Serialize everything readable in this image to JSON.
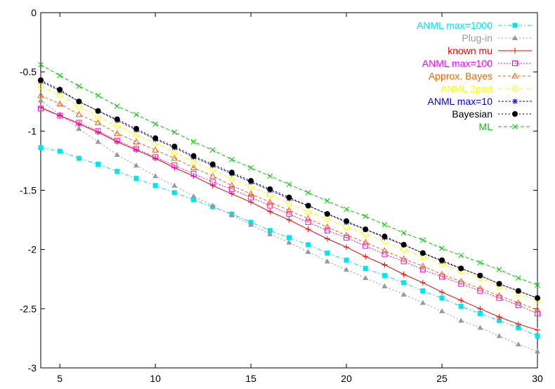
{
  "chart_data": {
    "type": "line",
    "title": "",
    "xlabel": "",
    "ylabel": "",
    "xlim": [
      4,
      30
    ],
    "ylim": [
      -3,
      0
    ],
    "grid": false,
    "legend_position": "top-right",
    "x_ticks": [
      "5",
      "10",
      "15",
      "20",
      "25",
      "30"
    ],
    "y_ticks": [
      "0",
      "-0.5",
      "-1",
      "-1.5",
      "-2",
      "-2.5",
      "-3"
    ],
    "x_tick_values": [
      5,
      10,
      15,
      20,
      25,
      30
    ],
    "y_tick_values": [
      0,
      -0.5,
      -1,
      -1.5,
      -2,
      -2.5,
      -3
    ],
    "x": [
      4,
      5,
      6,
      7,
      8,
      9,
      10,
      11,
      12,
      13,
      14,
      15,
      16,
      17,
      18,
      19,
      20,
      21,
      22,
      23,
      24,
      25,
      26,
      27,
      28,
      29,
      30
    ],
    "series": [
      {
        "name": "ANML max=1000",
        "color": "#00e5ee",
        "dash": "6,3,2,3",
        "marker": "filled-square",
        "values": [
          -1.14,
          -1.17,
          -1.23,
          -1.28,
          -1.34,
          -1.4,
          -1.46,
          -1.52,
          -1.58,
          -1.64,
          -1.7,
          -1.77,
          -1.84,
          -1.9,
          -1.96,
          -2.03,
          -2.09,
          -2.16,
          -2.22,
          -2.28,
          -2.35,
          -2.41,
          -2.48,
          -2.54,
          -2.6,
          -2.66,
          -2.73
        ]
      },
      {
        "name": "Plug-in",
        "color": "#999999",
        "dash": "2,3",
        "marker": "filled-triangle",
        "values": [
          -0.74,
          -0.86,
          -0.98,
          -1.09,
          -1.2,
          -1.29,
          -1.38,
          -1.46,
          -1.55,
          -1.63,
          -1.71,
          -1.79,
          -1.87,
          -1.94,
          -2.02,
          -2.1,
          -2.17,
          -2.24,
          -2.31,
          -2.38,
          -2.45,
          -2.52,
          -2.6,
          -2.66,
          -2.73,
          -2.8,
          -2.86
        ]
      },
      {
        "name": "known mu",
        "color": "#ff0000",
        "dash": "",
        "marker": "plus",
        "values": [
          -0.8,
          -0.87,
          -0.94,
          -1.01,
          -1.09,
          -1.16,
          -1.23,
          -1.31,
          -1.38,
          -1.46,
          -1.53,
          -1.6,
          -1.68,
          -1.75,
          -1.83,
          -1.91,
          -1.98,
          -2.06,
          -2.13,
          -2.21,
          -2.28,
          -2.36,
          -2.43,
          -2.5,
          -2.57,
          -2.63,
          -2.68
        ]
      },
      {
        "name": "ANML max=100",
        "color": "#ff00ff",
        "dash": "2,2",
        "marker": "open-square",
        "values": [
          -0.81,
          -0.87,
          -0.93,
          -1.0,
          -1.08,
          -1.15,
          -1.22,
          -1.29,
          -1.36,
          -1.43,
          -1.49,
          -1.56,
          -1.63,
          -1.7,
          -1.77,
          -1.84,
          -1.9,
          -1.97,
          -2.04,
          -2.1,
          -2.17,
          -2.23,
          -2.29,
          -2.35,
          -2.41,
          -2.47,
          -2.54
        ]
      },
      {
        "name": "Approx. Bayes",
        "color": "#ff6000",
        "dash": "4,3",
        "marker": "open-triangle",
        "values": [
          -0.7,
          -0.77,
          -0.86,
          -0.93,
          -1.02,
          -1.09,
          -1.16,
          -1.23,
          -1.31,
          -1.38,
          -1.46,
          -1.53,
          -1.6,
          -1.67,
          -1.74,
          -1.81,
          -1.88,
          -1.94,
          -2.01,
          -2.08,
          -2.14,
          -2.21,
          -2.27,
          -2.33,
          -2.39,
          -2.45,
          -2.51
        ]
      },
      {
        "name": "ANML 2part",
        "color": "#ffff00",
        "dash": "6,4",
        "marker": "open-circle",
        "values": [
          -0.62,
          -0.7,
          -0.79,
          -0.88,
          -0.96,
          -1.03,
          -1.1,
          -1.18,
          -1.26,
          -1.33,
          -1.4,
          -1.47,
          -1.54,
          -1.61,
          -1.68,
          -1.74,
          -1.81,
          -1.87,
          -1.93,
          -2.0,
          -2.06,
          -2.12,
          -2.18,
          -2.24,
          -2.31,
          -2.37,
          -2.43
        ]
      },
      {
        "name": "ANML max=10",
        "color": "#0000ff",
        "dash": "3,2",
        "marker": "star",
        "values": [
          -0.58,
          -0.66,
          -0.75,
          -0.83,
          -0.91,
          -0.99,
          -1.07,
          -1.14,
          -1.22,
          -1.29,
          -1.36,
          -1.43,
          -1.5,
          -1.57,
          -1.63,
          -1.7,
          -1.77,
          -1.83,
          -1.9,
          -1.96,
          -2.03,
          -2.1,
          -2.16,
          -2.22,
          -2.29,
          -2.35,
          -2.41
        ]
      },
      {
        "name": "Bayesian",
        "color": "#000000",
        "dash": "2,3",
        "marker": "filled-circle",
        "values": [
          -0.57,
          -0.65,
          -0.75,
          -0.83,
          -0.9,
          -0.98,
          -1.06,
          -1.13,
          -1.21,
          -1.28,
          -1.35,
          -1.42,
          -1.49,
          -1.56,
          -1.63,
          -1.7,
          -1.76,
          -1.83,
          -1.89,
          -1.96,
          -2.03,
          -2.09,
          -2.16,
          -2.22,
          -2.29,
          -2.35,
          -2.41
        ]
      },
      {
        "name": "ML",
        "color": "#00cc00",
        "dash": "5,3",
        "marker": "cross",
        "values": [
          -0.44,
          -0.53,
          -0.62,
          -0.7,
          -0.79,
          -0.86,
          -0.94,
          -1.01,
          -1.09,
          -1.16,
          -1.24,
          -1.31,
          -1.38,
          -1.45,
          -1.52,
          -1.59,
          -1.66,
          -1.72,
          -1.79,
          -1.86,
          -1.92,
          -1.99,
          -2.05,
          -2.11,
          -2.17,
          -2.24,
          -2.3
        ]
      }
    ]
  }
}
